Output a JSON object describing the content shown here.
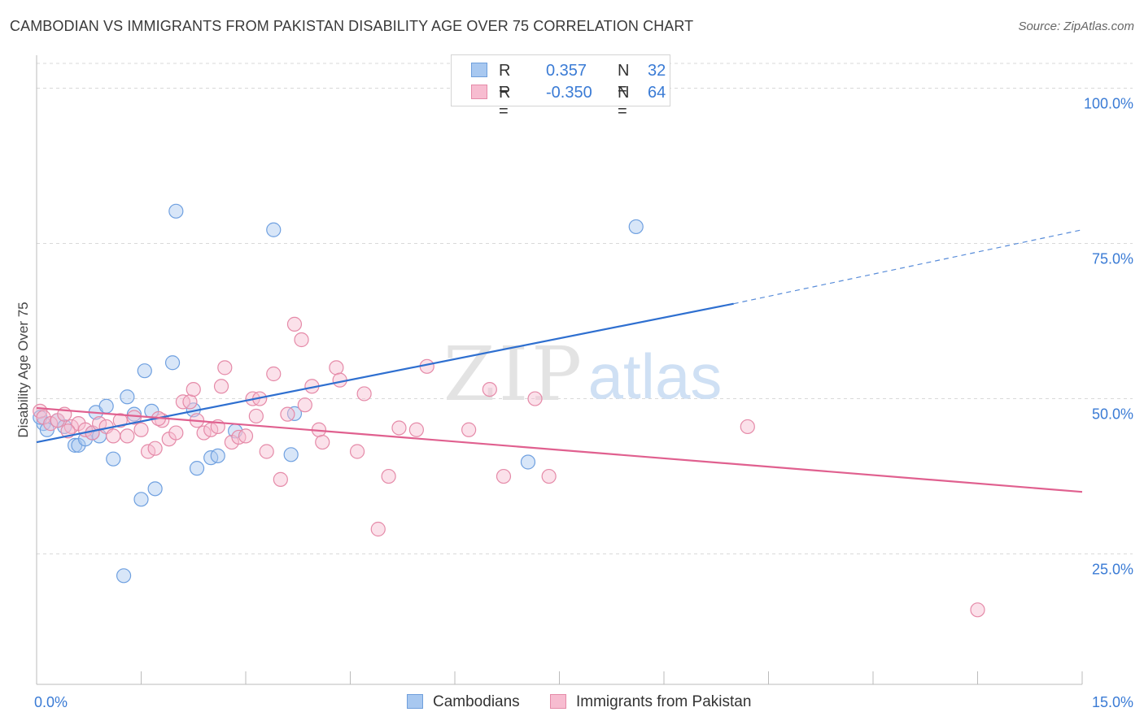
{
  "header": {
    "title": "CAMBODIAN VS IMMIGRANTS FROM PAKISTAN DISABILITY AGE OVER 75 CORRELATION CHART",
    "source": "Source: ZipAtlas.com"
  },
  "watermark": {
    "zip": "ZIP",
    "atlas": "atlas"
  },
  "legend": {
    "rows": [
      {
        "r_label": "R =",
        "r_value": "0.357",
        "n_label": "N =",
        "n_value": "32",
        "color": "#a8c8f0",
        "border": "#6f9fdc"
      },
      {
        "r_label": "R =",
        "r_value": "-0.350",
        "n_label": "N =",
        "n_value": "64",
        "color": "#f7bcd0",
        "border": "#e58aa8"
      }
    ]
  },
  "bottom_legend": {
    "items": [
      {
        "label": "Cambodians",
        "color": "#a8c8f0",
        "border": "#6f9fdc"
      },
      {
        "label": "Immigrants from Pakistan",
        "color": "#f7bcd0",
        "border": "#e58aa8"
      }
    ]
  },
  "chart_data": {
    "type": "scatter",
    "ylabel": "Disability Age Over 75",
    "xlabel": "",
    "xlim": [
      0,
      15
    ],
    "ylim": [
      4,
      104
    ],
    "x_tick_labels": [
      {
        "value": 0,
        "label": "0.0%"
      },
      {
        "value": 15,
        "label": "15.0%"
      }
    ],
    "x_minor_ticks": [
      1.5,
      3.0,
      4.5,
      6.0,
      7.5,
      9.0,
      10.5,
      12.0,
      13.5
    ],
    "y_ticks": [
      {
        "value": 100,
        "label": "100.0%"
      },
      {
        "value": 75,
        "label": "75.0%"
      },
      {
        "value": 50,
        "label": "50.0%"
      },
      {
        "value": 25,
        "label": "25.0%"
      }
    ],
    "grid": "dashed-horizontal",
    "legend_position": "top-center",
    "series": [
      {
        "name": "Cambodians",
        "color": "#6fa0e0",
        "fill": "#a8c8f0",
        "trend": {
          "x0": 0,
          "y0": 43,
          "x1": 10.0,
          "y1": 65.3,
          "dash_x1": 15,
          "dash_y1": 77.2,
          "color": "#2e6fd0"
        },
        "points": [
          [
            0.1,
            46
          ],
          [
            0.15,
            45
          ],
          [
            0.3,
            46.5
          ],
          [
            0.4,
            45.5
          ],
          [
            0.55,
            42.5
          ],
          [
            0.6,
            42.5
          ],
          [
            0.7,
            43.5
          ],
          [
            0.8,
            44.5
          ],
          [
            0.85,
            47.8
          ],
          [
            0.9,
            44
          ],
          [
            1.0,
            48.8
          ],
          [
            1.1,
            40.3
          ],
          [
            1.25,
            21.5
          ],
          [
            1.3,
            50.3
          ],
          [
            1.4,
            47.5
          ],
          [
            1.5,
            33.8
          ],
          [
            1.55,
            54.5
          ],
          [
            1.65,
            48
          ],
          [
            1.7,
            35.5
          ],
          [
            1.95,
            55.8
          ],
          [
            2.0,
            80.2
          ],
          [
            2.25,
            48.2
          ],
          [
            2.3,
            38.8
          ],
          [
            2.5,
            40.5
          ],
          [
            2.6,
            40.8
          ],
          [
            2.85,
            44.8
          ],
          [
            3.4,
            77.2
          ],
          [
            3.65,
            41
          ],
          [
            3.7,
            47.6
          ],
          [
            7.05,
            39.8
          ],
          [
            8.6,
            77.7
          ],
          [
            0.05,
            47
          ]
        ]
      },
      {
        "name": "Immigrants from Pakistan",
        "color": "#e58aa8",
        "fill": "#f7bcd0",
        "trend": {
          "x0": 0,
          "y0": 48.5,
          "x1": 15,
          "y1": 35,
          "color": "#e0608f"
        },
        "points": [
          [
            0.05,
            48
          ],
          [
            0.1,
            47
          ],
          [
            0.2,
            46
          ],
          [
            0.3,
            46.5
          ],
          [
            0.4,
            47.5
          ],
          [
            0.5,
            45.5
          ],
          [
            0.6,
            46
          ],
          [
            0.7,
            45
          ],
          [
            0.8,
            44.5
          ],
          [
            0.9,
            46
          ],
          [
            1.0,
            45.5
          ],
          [
            1.1,
            44
          ],
          [
            1.2,
            46.5
          ],
          [
            1.3,
            44
          ],
          [
            1.4,
            47
          ],
          [
            1.5,
            45
          ],
          [
            1.6,
            41.5
          ],
          [
            1.7,
            42
          ],
          [
            1.8,
            46.5
          ],
          [
            1.9,
            43.5
          ],
          [
            2.0,
            44.5
          ],
          [
            2.1,
            49.5
          ],
          [
            2.2,
            49.5
          ],
          [
            2.25,
            51.5
          ],
          [
            2.3,
            46.5
          ],
          [
            2.4,
            44.5
          ],
          [
            2.5,
            45
          ],
          [
            2.6,
            45.5
          ],
          [
            2.65,
            52
          ],
          [
            2.7,
            55
          ],
          [
            2.8,
            43
          ],
          [
            2.9,
            43.8
          ],
          [
            3.0,
            44
          ],
          [
            3.1,
            50
          ],
          [
            3.2,
            50
          ],
          [
            3.3,
            41.5
          ],
          [
            3.4,
            54
          ],
          [
            3.5,
            37
          ],
          [
            3.6,
            47.5
          ],
          [
            3.7,
            62
          ],
          [
            3.8,
            59.5
          ],
          [
            3.85,
            49
          ],
          [
            3.95,
            52
          ],
          [
            4.05,
            45
          ],
          [
            4.1,
            43
          ],
          [
            4.3,
            55
          ],
          [
            4.35,
            53
          ],
          [
            4.6,
            41.5
          ],
          [
            4.7,
            50.8
          ],
          [
            4.9,
            29
          ],
          [
            5.05,
            37.5
          ],
          [
            5.2,
            45.3
          ],
          [
            5.45,
            45
          ],
          [
            5.6,
            55.2
          ],
          [
            6.2,
            45
          ],
          [
            6.5,
            51.5
          ],
          [
            6.7,
            37.5
          ],
          [
            7.15,
            50
          ],
          [
            7.35,
            37.5
          ],
          [
            10.2,
            45.5
          ],
          [
            13.5,
            16
          ],
          [
            1.75,
            46.8
          ],
          [
            3.15,
            47.2
          ],
          [
            0.45,
            44.8
          ]
        ]
      }
    ]
  }
}
